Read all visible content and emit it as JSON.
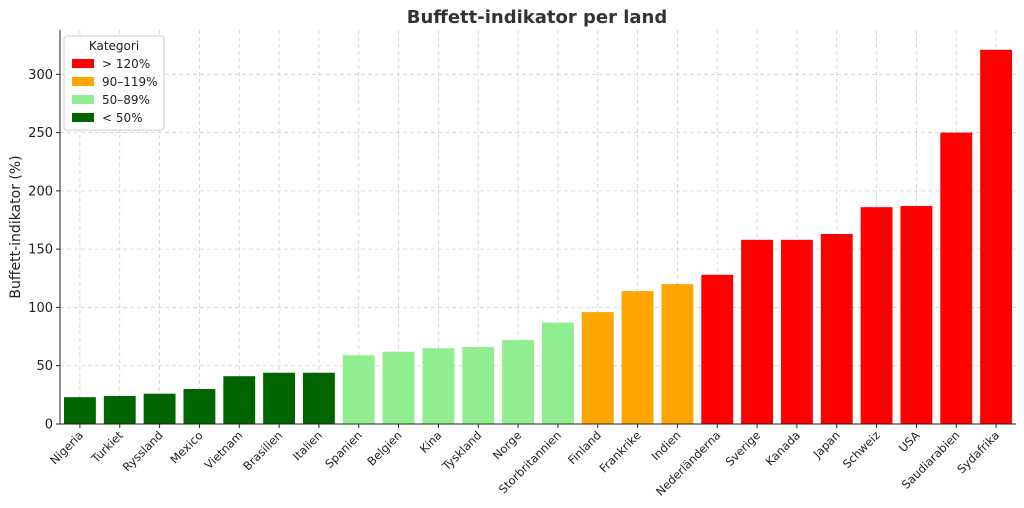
{
  "chart_data": {
    "type": "bar",
    "title": "Buffett-indikator per land",
    "xlabel": "",
    "ylabel": "Buffett-indikator (%)",
    "ylim": [
      0,
      338
    ],
    "yticks": [
      0,
      50,
      100,
      150,
      200,
      250,
      300
    ],
    "grid": true,
    "legend_position": "top-left",
    "legend": {
      "title": "Kategori",
      "entries": [
        {
          "label": "> 120%",
          "color": "#ff0000"
        },
        {
          "label": "90–119%",
          "color": "#ffa500"
        },
        {
          "label": "50–89%",
          "color": "#90ee90"
        },
        {
          "label": "< 50%",
          "color": "#006400"
        }
      ]
    },
    "categories": [
      "Nigeria",
      "Turkiet",
      "Ryssland",
      "Mexico",
      "Vietnam",
      "Brasilien",
      "Italien",
      "Spanien",
      "Belgien",
      "Kina",
      "Tyskland",
      "Norge",
      "Storbritannien",
      "Finland",
      "Frankrike",
      "Indien",
      "Nederländerna",
      "Sverige",
      "Kanada",
      "Japan",
      "Schweiz",
      "USA",
      "Saudiarabien",
      "Sydafrika"
    ],
    "values": [
      23,
      24,
      26,
      30,
      41,
      44,
      44,
      59,
      62,
      65,
      66,
      72,
      87,
      96,
      114,
      120,
      128,
      158,
      158,
      163,
      186,
      187,
      250,
      321
    ],
    "bar_colors": [
      "#006400",
      "#006400",
      "#006400",
      "#006400",
      "#006400",
      "#006400",
      "#006400",
      "#90ee90",
      "#90ee90",
      "#90ee90",
      "#90ee90",
      "#90ee90",
      "#90ee90",
      "#ffa500",
      "#ffa500",
      "#ffa500",
      "#ff0000",
      "#ff0000",
      "#ff0000",
      "#ff0000",
      "#ff0000",
      "#ff0000",
      "#ff0000",
      "#ff0000"
    ]
  }
}
